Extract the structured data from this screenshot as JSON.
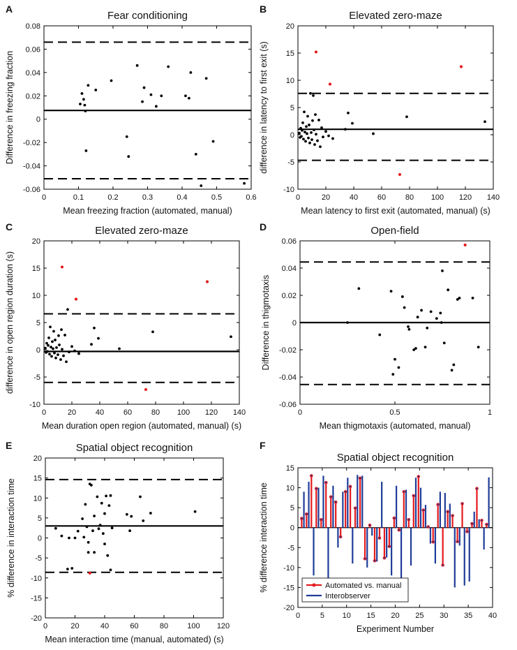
{
  "colors": {
    "black": "#000000",
    "red": "#e41a1c",
    "blue": "#1f3c99"
  },
  "chart_data": [
    {
      "panel": "A",
      "type": "scatter",
      "title": "Fear conditioning",
      "xlabel": "Mean freezing fraction (automated, manual)",
      "ylabel": "Difference in freezing fraction",
      "xlim": [
        0,
        0.6
      ],
      "ylim": [
        -0.06,
        0.08
      ],
      "xticks": [
        0,
        0.1,
        0.2,
        0.3,
        0.4,
        0.5,
        0.6
      ],
      "yticks": [
        -0.06,
        -0.04,
        -0.02,
        0,
        0.02,
        0.04,
        0.06,
        0.08
      ],
      "xtick_labels": [
        "0",
        "0.1",
        "0.2",
        "0.3",
        "0.4",
        "0.5",
        "0.6"
      ],
      "ytick_labels": [
        "-0.06",
        "-0.04",
        "-0.02",
        "0",
        "0.02",
        "0.04",
        "0.06",
        "0.08"
      ],
      "mean_line": 0.0075,
      "limits": [
        0.066,
        -0.051
      ],
      "points": [
        [
          0.105,
          0.013
        ],
        [
          0.11,
          0.022
        ],
        [
          0.115,
          0.017
        ],
        [
          0.118,
          0.012
        ],
        [
          0.12,
          0.007
        ],
        [
          0.122,
          -0.027
        ],
        [
          0.128,
          0.029
        ],
        [
          0.15,
          0.025
        ],
        [
          0.195,
          0.033
        ],
        [
          0.24,
          -0.015
        ],
        [
          0.245,
          -0.032
        ],
        [
          0.27,
          0.046
        ],
        [
          0.285,
          0.015
        ],
        [
          0.29,
          0.027
        ],
        [
          0.31,
          0.021
        ],
        [
          0.325,
          0.011
        ],
        [
          0.34,
          0.02
        ],
        [
          0.36,
          0.045
        ],
        [
          0.41,
          0.02
        ],
        [
          0.42,
          0.018
        ],
        [
          0.425,
          0.04
        ],
        [
          0.44,
          -0.03
        ],
        [
          0.455,
          -0.057
        ],
        [
          0.47,
          0.035
        ],
        [
          0.49,
          -0.019
        ],
        [
          0.58,
          -0.055
        ]
      ],
      "red_points": []
    },
    {
      "panel": "B",
      "type": "scatter",
      "title": "Elevated zero-maze",
      "xlabel": "Mean latency to first exit (automated, manual) (s)",
      "ylabel": "difference in latency to first exit (s)",
      "xlim": [
        0,
        140
      ],
      "ylim": [
        -10,
        20
      ],
      "xticks": [
        0,
        20,
        40,
        60,
        80,
        100,
        120,
        140
      ],
      "yticks": [
        -10,
        -5,
        0,
        5,
        10,
        15,
        20
      ],
      "xtick_labels": [
        "0",
        "20",
        "40",
        "60",
        "80",
        "100",
        "120",
        "140"
      ],
      "ytick_labels": [
        "-10",
        "-5",
        "0",
        "5",
        "10",
        "15",
        "20"
      ],
      "mean_line": 1.0,
      "limits": [
        7.6,
        -4.7
      ],
      "points": [
        [
          1,
          0.3
        ],
        [
          1.5,
          -0.5
        ],
        [
          2,
          1.2
        ],
        [
          2.5,
          -0.3
        ],
        [
          3,
          0.8
        ],
        [
          3.5,
          2.2
        ],
        [
          4,
          -0.8
        ],
        [
          4.5,
          4.2
        ],
        [
          5,
          0.5
        ],
        [
          5.5,
          -1.2
        ],
        [
          6,
          1.5
        ],
        [
          6.5,
          0.2
        ],
        [
          7,
          3.4
        ],
        [
          7.5,
          -0.6
        ],
        [
          8,
          1.8
        ],
        [
          8.5,
          -1.5
        ],
        [
          9,
          7.6
        ],
        [
          9.5,
          0.4
        ],
        [
          10,
          -0.9
        ],
        [
          10.5,
          2.6
        ],
        [
          11,
          7.2
        ],
        [
          11.5,
          0.9
        ],
        [
          12,
          -1.8
        ],
        [
          12.5,
          3.7
        ],
        [
          13,
          0.1
        ],
        [
          14,
          -1.1
        ],
        [
          15,
          2.7
        ],
        [
          16,
          -2.2
        ],
        [
          17,
          1.3
        ],
        [
          18,
          -0.4
        ],
        [
          20,
          0.6
        ],
        [
          22,
          -0.2
        ],
        [
          25,
          -0.7
        ],
        [
          34,
          1.0
        ],
        [
          36,
          4.0
        ],
        [
          39,
          2.1
        ],
        [
          54,
          0.2
        ],
        [
          78,
          3.3
        ],
        [
          134,
          2.4
        ]
      ],
      "red_points": [
        [
          13,
          15.2
        ],
        [
          23,
          9.3
        ],
        [
          73,
          -7.3
        ],
        [
          117,
          12.5
        ]
      ]
    },
    {
      "panel": "C",
      "type": "scatter",
      "title": "Elevated zero-maze",
      "xlabel": "Mean duration open region (automated, manual) (s)",
      "ylabel": "difference in open region duration (s)",
      "xlim": [
        0,
        140
      ],
      "ylim": [
        -10,
        20
      ],
      "xticks": [
        0,
        20,
        40,
        60,
        80,
        100,
        120,
        140
      ],
      "yticks": [
        -10,
        -5,
        0,
        5,
        10,
        15,
        20
      ],
      "xtick_labels": [
        "0",
        "20",
        "40",
        "60",
        "80",
        "100",
        "120",
        "140"
      ],
      "ytick_labels": [
        "-10",
        "-5",
        "0",
        "5",
        "10",
        "15",
        "20"
      ],
      "mean_line": -0.3,
      "limits": [
        6.6,
        -6.0
      ],
      "points": [
        [
          1,
          0.3
        ],
        [
          1.5,
          -0.5
        ],
        [
          2,
          1.2
        ],
        [
          2.5,
          -0.3
        ],
        [
          3,
          0.8
        ],
        [
          3.5,
          2.2
        ],
        [
          4,
          -0.8
        ],
        [
          4.5,
          4.2
        ],
        [
          5,
          0.5
        ],
        [
          5.5,
          -1.2
        ],
        [
          6,
          1.5
        ],
        [
          6.5,
          0.2
        ],
        [
          7,
          3.4
        ],
        [
          7.5,
          -0.6
        ],
        [
          8,
          1.8
        ],
        [
          8.5,
          -1.5
        ],
        [
          9,
          0.4
        ],
        [
          10,
          -0.9
        ],
        [
          10.5,
          2.6
        ],
        [
          11,
          0.9
        ],
        [
          12,
          -1.8
        ],
        [
          12.5,
          3.7
        ],
        [
          13,
          0.1
        ],
        [
          14,
          -1.1
        ],
        [
          15,
          2.7
        ],
        [
          16,
          -2.2
        ],
        [
          17,
          7.4
        ],
        [
          18,
          -0.4
        ],
        [
          20,
          0.6
        ],
        [
          22,
          -0.2
        ],
        [
          25,
          -0.7
        ],
        [
          34,
          1.0
        ],
        [
          36,
          4.0
        ],
        [
          39,
          2.1
        ],
        [
          54,
          0.2
        ],
        [
          78,
          3.3
        ],
        [
          134,
          2.4
        ]
      ],
      "red_points": [
        [
          13,
          15.2
        ],
        [
          23,
          9.3
        ],
        [
          73,
          -7.3
        ],
        [
          117,
          12.5
        ]
      ]
    },
    {
      "panel": "D",
      "type": "scatter",
      "title": "Open-field",
      "xlabel": "Mean thigmotaxis (automated, manual)",
      "ylabel": "Difference in thigmotaxis",
      "xlim": [
        0,
        1
      ],
      "ylim": [
        -0.06,
        0.06
      ],
      "xticks": [
        0,
        0.5,
        1
      ],
      "yticks": [
        -0.06,
        -0.04,
        -0.02,
        0,
        0.02,
        0.04,
        0.06
      ],
      "xtick_labels": [
        "0",
        "0.5",
        "1"
      ],
      "ytick_labels": [
        "-0.06",
        "-0.04",
        "-0.02",
        "0",
        "0.02",
        "0.04",
        "0.06"
      ],
      "mean_line": 0.0,
      "limits": [
        0.0445,
        -0.0455
      ],
      "points": [
        [
          0.25,
          0.0
        ],
        [
          0.31,
          0.025
        ],
        [
          0.42,
          -0.009
        ],
        [
          0.48,
          0.023
        ],
        [
          0.49,
          -0.038
        ],
        [
          0.5,
          -0.027
        ],
        [
          0.52,
          -0.033
        ],
        [
          0.54,
          0.019
        ],
        [
          0.55,
          0.011
        ],
        [
          0.57,
          -0.003
        ],
        [
          0.575,
          -0.005
        ],
        [
          0.6,
          -0.02
        ],
        [
          0.61,
          -0.019
        ],
        [
          0.62,
          0.004
        ],
        [
          0.64,
          0.009
        ],
        [
          0.66,
          -0.018
        ],
        [
          0.67,
          -0.004
        ],
        [
          0.69,
          0.008
        ],
        [
          0.72,
          0.003
        ],
        [
          0.74,
          0.007
        ],
        [
          0.745,
          0.0
        ],
        [
          0.75,
          0.038
        ],
        [
          0.76,
          -0.015
        ],
        [
          0.78,
          0.024
        ],
        [
          0.8,
          -0.035
        ],
        [
          0.81,
          -0.031
        ],
        [
          0.83,
          0.017
        ],
        [
          0.84,
          0.018
        ],
        [
          0.91,
          0.018
        ],
        [
          0.94,
          -0.018
        ]
      ],
      "red_points": [
        [
          0.87,
          0.057
        ]
      ]
    },
    {
      "panel": "E",
      "type": "scatter",
      "title": "Spatial object recognition",
      "xlabel": "Mean interaction time (manual, automated) (s)",
      "ylabel": "% difference in interaction time",
      "xlim": [
        0,
        120
      ],
      "ylim": [
        -20,
        20
      ],
      "xticks": [
        0,
        20,
        40,
        60,
        80,
        100,
        120
      ],
      "yticks": [
        -20,
        -15,
        -10,
        -5,
        0,
        5,
        10,
        15,
        20
      ],
      "xtick_labels": [
        "0",
        "20",
        "40",
        "60",
        "80",
        "100",
        "120"
      ],
      "ytick_labels": [
        "-20",
        "-15",
        "-10",
        "-5",
        "0",
        "5",
        "10",
        "15",
        "20"
      ],
      "mean_line": 3.0,
      "limits": [
        14.6,
        -8.6
      ],
      "points": [
        [
          7,
          2.4
        ],
        [
          11,
          0.5
        ],
        [
          15,
          -7.8
        ],
        [
          16,
          0
        ],
        [
          18,
          -7.6
        ],
        [
          20,
          0
        ],
        [
          22,
          1.7
        ],
        [
          25,
          4.8
        ],
        [
          26,
          0.2
        ],
        [
          27,
          8.4
        ],
        [
          28,
          2.8
        ],
        [
          29,
          -1.1
        ],
        [
          29,
          -3.6
        ],
        [
          30,
          13.5
        ],
        [
          31,
          13.2
        ],
        [
          32,
          1.8
        ],
        [
          33,
          -3.6
        ],
        [
          33,
          5.5
        ],
        [
          35,
          10.3
        ],
        [
          36,
          2.3
        ],
        [
          37,
          3.2
        ],
        [
          38,
          8.7
        ],
        [
          39,
          1.1
        ],
        [
          40,
          6.1
        ],
        [
          40,
          -1.5
        ],
        [
          41,
          10.5
        ],
        [
          42,
          -4.4
        ],
        [
          43,
          8.1
        ],
        [
          44,
          10.6
        ],
        [
          44,
          -8.0
        ],
        [
          45,
          2.5
        ],
        [
          55,
          5.9
        ],
        [
          57,
          1.8
        ],
        [
          58,
          5.4
        ],
        [
          64,
          10.3
        ],
        [
          66,
          4.3
        ],
        [
          71,
          6.2
        ],
        [
          101,
          6.6
        ]
      ],
      "red_points": [
        [
          30,
          -8.8
        ]
      ]
    },
    {
      "panel": "F",
      "type": "bar",
      "title": "Spatial object recognition",
      "xlabel": "Experiment Number",
      "ylabel": "% difference interaction time",
      "xlim": [
        0,
        40
      ],
      "ylim": [
        -20,
        15
      ],
      "xticks": [
        0,
        5,
        10,
        15,
        20,
        25,
        30,
        35,
        40
      ],
      "yticks": [
        -20,
        -15,
        -10,
        -5,
        0,
        5,
        10,
        15
      ],
      "xtick_labels": [
        "0",
        "5",
        "10",
        "15",
        "20",
        "25",
        "30",
        "35",
        "40"
      ],
      "ytick_labels": [
        "-20",
        "-15",
        "-10",
        "-5",
        "0",
        "5",
        "10",
        "15"
      ],
      "legend": {
        "placement": "lower-left",
        "entries": [
          "Automated vs. manual",
          "Interobserver"
        ]
      },
      "series": [
        {
          "name": "Automated vs. manual",
          "values": [
            2.3,
            3.4,
            13.0,
            9.8,
            2.0,
            11.3,
            7.7,
            6.4,
            -2.3,
            9.0,
            10.3,
            4.9,
            12.4,
            -7.8,
            0.6,
            -8.3,
            -2.6,
            -7.6,
            -4.7,
            2.4,
            -0.6,
            9.0,
            2.0,
            8.0,
            12.8,
            4.4,
            0.2,
            -3.6,
            5.8,
            -9.4,
            4.0,
            3.0,
            -3.5,
            6.0,
            -1.0,
            1.0,
            9.8,
            1.8,
            0.8
          ]
        },
        {
          "name": "Interobserver",
          "values": [
            9.0,
            11.5,
            -12.0,
            10.0,
            13.0,
            -13.0,
            10.5,
            -5.0,
            9.0,
            12.5,
            -9.0,
            13.2,
            13.0,
            -10.0,
            -2.0,
            -8.5,
            11.5,
            -7.5,
            -12.0,
            10.5,
            -15.0,
            9.5,
            -9.5,
            12.5,
            10.0,
            5.7,
            -4.0,
            -9.0,
            9.0,
            8.7,
            6.0,
            -15.0,
            -4.5,
            -14.5,
            -13.5,
            4.0,
            2.1,
            -5.5,
            12.6
          ]
        }
      ]
    }
  ],
  "panel_labels": [
    "A",
    "B",
    "C",
    "D",
    "E",
    "F"
  ]
}
